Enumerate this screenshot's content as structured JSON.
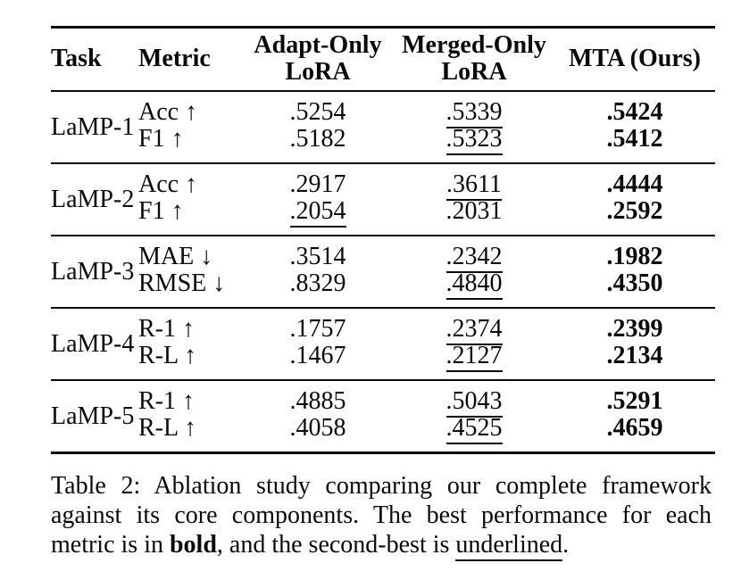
{
  "table": {
    "headers": {
      "task": "Task",
      "metric": "Metric",
      "adapt_line1": "Adapt-Only",
      "adapt_line2": "LoRA",
      "merged_line1": "Merged-Only",
      "merged_line2": "LoRA",
      "mta": "MTA (Ours)"
    },
    "emphasis_legend": {
      "bold": "best performance",
      "underline": "second-best performance"
    },
    "groups": [
      {
        "task": "LaMP-1",
        "rows": [
          {
            "metric": "Acc ↑",
            "values": [
              {
                "text": ".5254",
                "style": "plain"
              },
              {
                "text": ".5339",
                "style": "underline"
              },
              {
                "text": ".5424",
                "style": "bold"
              }
            ]
          },
          {
            "metric": "F1 ↑",
            "values": [
              {
                "text": ".5182",
                "style": "plain"
              },
              {
                "text": ".5323",
                "style": "underline"
              },
              {
                "text": ".5412",
                "style": "bold"
              }
            ]
          }
        ]
      },
      {
        "task": "LaMP-2",
        "rows": [
          {
            "metric": "Acc ↑",
            "values": [
              {
                "text": ".2917",
                "style": "plain"
              },
              {
                "text": ".3611",
                "style": "underline"
              },
              {
                "text": ".4444",
                "style": "bold"
              }
            ]
          },
          {
            "metric": "F1 ↑",
            "values": [
              {
                "text": ".2054",
                "style": "underline"
              },
              {
                "text": ".2031",
                "style": "plain"
              },
              {
                "text": ".2592",
                "style": "bold"
              }
            ]
          }
        ]
      },
      {
        "task": "LaMP-3",
        "rows": [
          {
            "metric": "MAE ↓",
            "values": [
              {
                "text": ".3514",
                "style": "plain"
              },
              {
                "text": ".2342",
                "style": "underline"
              },
              {
                "text": ".1982",
                "style": "bold"
              }
            ]
          },
          {
            "metric": "RMSE ↓",
            "values": [
              {
                "text": ".8329",
                "style": "plain"
              },
              {
                "text": ".4840",
                "style": "underline"
              },
              {
                "text": ".4350",
                "style": "bold"
              }
            ]
          }
        ]
      },
      {
        "task": "LaMP-4",
        "rows": [
          {
            "metric": "R-1 ↑",
            "values": [
              {
                "text": ".1757",
                "style": "plain"
              },
              {
                "text": ".2374",
                "style": "underline"
              },
              {
                "text": ".2399",
                "style": "bold"
              }
            ]
          },
          {
            "metric": "R-L ↑",
            "values": [
              {
                "text": ".1467",
                "style": "plain"
              },
              {
                "text": ".2127",
                "style": "underline"
              },
              {
                "text": ".2134",
                "style": "bold"
              }
            ]
          }
        ]
      },
      {
        "task": "LaMP-5",
        "rows": [
          {
            "metric": "R-1 ↑",
            "values": [
              {
                "text": ".4885",
                "style": "plain"
              },
              {
                "text": ".5043",
                "style": "underline"
              },
              {
                "text": ".5291",
                "style": "bold"
              }
            ]
          },
          {
            "metric": "R-L ↑",
            "values": [
              {
                "text": ".4058",
                "style": "plain"
              },
              {
                "text": ".4525",
                "style": "underline"
              },
              {
                "text": ".4659",
                "style": "bold"
              }
            ]
          }
        ]
      }
    ]
  },
  "caption": {
    "segments": [
      {
        "text": "Table 2: Ablation study comparing our complete framework against its core components. The best performance for each metric is in ",
        "style": "plain"
      },
      {
        "text": "bold",
        "style": "bold"
      },
      {
        "text": ", and the second-best is ",
        "style": "plain"
      },
      {
        "text": "underlined",
        "style": "underline"
      },
      {
        "text": ".",
        "style": "plain"
      }
    ]
  }
}
